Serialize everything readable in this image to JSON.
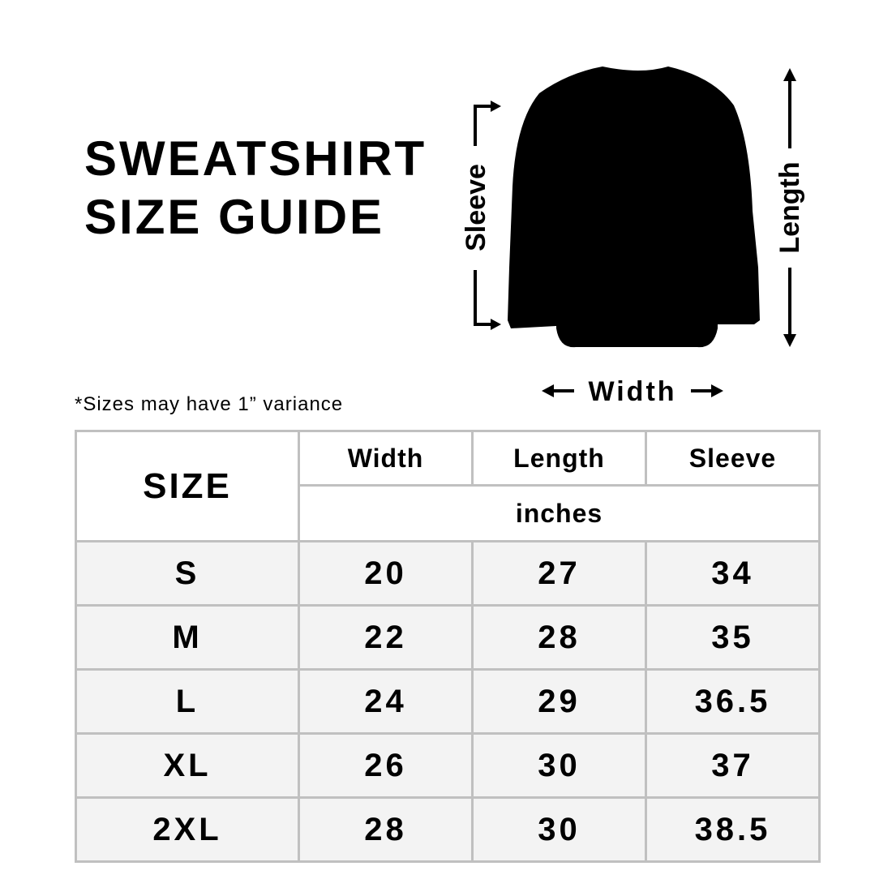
{
  "title": {
    "line1": "SWEATSHIRT",
    "line2": "SIZE GUIDE"
  },
  "note": "*Sizes may have 1” variance",
  "diagram": {
    "sleeve_label": "Sleeve",
    "length_label": "Length",
    "width_label": "Width",
    "garment_color": "#000000"
  },
  "table": {
    "size_header": "SIZE",
    "columns": [
      "Width",
      "Length",
      "Sleeve"
    ],
    "unit": "inches",
    "rows": [
      {
        "size": "S",
        "width": "20",
        "length": "27",
        "sleeve": "34"
      },
      {
        "size": "M",
        "width": "22",
        "length": "28",
        "sleeve": "35"
      },
      {
        "size": "L",
        "width": "24",
        "length": "29",
        "sleeve": "36.5"
      },
      {
        "size": "XL",
        "width": "26",
        "length": "30",
        "sleeve": "37"
      },
      {
        "size": "2XL",
        "width": "28",
        "length": "30",
        "sleeve": "38.5"
      }
    ],
    "border_color": "#c0c0c0",
    "row_bg": "#f3f3f3"
  }
}
